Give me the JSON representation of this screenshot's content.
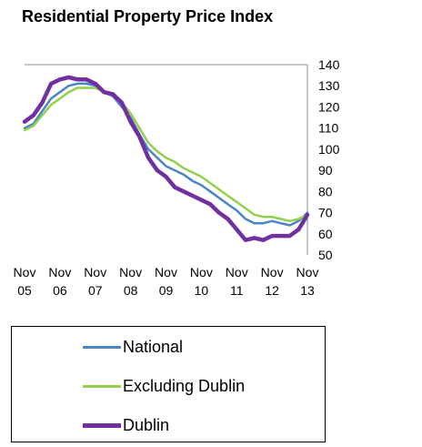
{
  "chart_data": {
    "type": "line",
    "title": "Residential Property Price Index",
    "xlabel": "",
    "ylabel": "",
    "x_ticks": [
      {
        "top": "Nov",
        "bottom": "05",
        "month": 0
      },
      {
        "top": "Nov",
        "bottom": "06",
        "month": 12
      },
      {
        "top": "Nov",
        "bottom": "07",
        "month": 24
      },
      {
        "top": "Nov",
        "bottom": "08",
        "month": 36
      },
      {
        "top": "Nov",
        "bottom": "09",
        "month": 48
      },
      {
        "top": "Nov",
        "bottom": "10",
        "month": 60
      },
      {
        "top": "Nov",
        "bottom": "11",
        "month": 72
      },
      {
        "top": "Nov",
        "bottom": "12",
        "month": 84
      },
      {
        "top": "Nov",
        "bottom": "13",
        "month": 96
      }
    ],
    "x_unit": "months from Nov 2005",
    "xlim": [
      0,
      96
    ],
    "ylim": [
      50,
      140
    ],
    "y_ticks": [
      50,
      60,
      70,
      80,
      90,
      100,
      110,
      120,
      130,
      140
    ],
    "grid": "horizontal line at 140 only",
    "legend_position": "bottom",
    "series": [
      {
        "name": "National",
        "color": "#4a86c8",
        "points": [
          [
            0,
            110
          ],
          [
            3,
            112
          ],
          [
            6,
            118
          ],
          [
            9,
            124
          ],
          [
            12,
            127
          ],
          [
            15,
            130
          ],
          [
            18,
            131
          ],
          [
            21,
            131
          ],
          [
            24,
            130
          ],
          [
            27,
            127
          ],
          [
            30,
            125
          ],
          [
            33,
            120
          ],
          [
            36,
            115
          ],
          [
            39,
            107
          ],
          [
            42,
            100
          ],
          [
            45,
            96
          ],
          [
            48,
            92
          ],
          [
            51,
            90
          ],
          [
            54,
            88
          ],
          [
            57,
            85
          ],
          [
            60,
            83
          ],
          [
            63,
            80
          ],
          [
            66,
            77
          ],
          [
            69,
            74
          ],
          [
            72,
            71
          ],
          [
            75,
            67
          ],
          [
            78,
            65
          ],
          [
            81,
            65
          ],
          [
            84,
            66
          ],
          [
            87,
            65
          ],
          [
            90,
            64
          ],
          [
            93,
            66
          ],
          [
            96,
            70
          ]
        ]
      },
      {
        "name": "Excluding Dublin",
        "color": "#92d050",
        "points": [
          [
            0,
            109
          ],
          [
            3,
            111
          ],
          [
            6,
            116
          ],
          [
            9,
            121
          ],
          [
            12,
            124
          ],
          [
            15,
            127
          ],
          [
            18,
            129
          ],
          [
            21,
            129
          ],
          [
            24,
            129
          ],
          [
            27,
            127
          ],
          [
            30,
            126
          ],
          [
            33,
            122
          ],
          [
            36,
            117
          ],
          [
            39,
            110
          ],
          [
            42,
            103
          ],
          [
            45,
            99
          ],
          [
            48,
            96
          ],
          [
            51,
            94
          ],
          [
            54,
            91
          ],
          [
            57,
            89
          ],
          [
            60,
            87
          ],
          [
            63,
            84
          ],
          [
            66,
            81
          ],
          [
            69,
            78
          ],
          [
            72,
            75
          ],
          [
            75,
            72
          ],
          [
            78,
            69
          ],
          [
            81,
            68
          ],
          [
            84,
            68
          ],
          [
            87,
            67
          ],
          [
            90,
            66
          ],
          [
            93,
            67
          ],
          [
            96,
            69
          ]
        ]
      },
      {
        "name": "Dublin",
        "color": "#7030a0",
        "points": [
          [
            0,
            113
          ],
          [
            3,
            116
          ],
          [
            6,
            122
          ],
          [
            9,
            131
          ],
          [
            12,
            133
          ],
          [
            15,
            134
          ],
          [
            18,
            133
          ],
          [
            21,
            133
          ],
          [
            24,
            131
          ],
          [
            27,
            127
          ],
          [
            30,
            126
          ],
          [
            33,
            122
          ],
          [
            36,
            113
          ],
          [
            39,
            106
          ],
          [
            42,
            96
          ],
          [
            45,
            90
          ],
          [
            48,
            87
          ],
          [
            51,
            82
          ],
          [
            54,
            80
          ],
          [
            57,
            78
          ],
          [
            60,
            76
          ],
          [
            63,
            74
          ],
          [
            66,
            70
          ],
          [
            69,
            67
          ],
          [
            72,
            62
          ],
          [
            75,
            57
          ],
          [
            78,
            58
          ],
          [
            81,
            57
          ],
          [
            84,
            59
          ],
          [
            87,
            59
          ],
          [
            90,
            59
          ],
          [
            93,
            62
          ],
          [
            96,
            69
          ]
        ]
      }
    ]
  }
}
